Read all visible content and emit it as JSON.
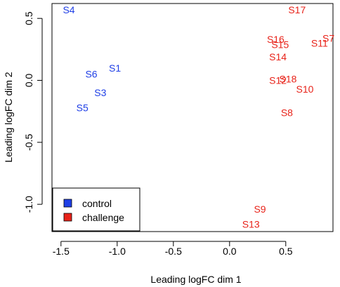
{
  "chart_data": {
    "type": "scatter",
    "title": "",
    "xlabel": "Leading logFC dim 1",
    "ylabel": "Leading logFC dim 2",
    "xlim": [
      -1.58,
      0.92
    ],
    "ylim": [
      -1.22,
      0.62
    ],
    "x_ticks": [
      -1.5,
      -1.0,
      -0.5,
      0.0,
      0.5
    ],
    "x_tick_labels": [
      "-1.5",
      "-1.0",
      "-0.5",
      "0.0",
      "0.5"
    ],
    "y_ticks": [
      -1.0,
      -0.5,
      0.0,
      0.5
    ],
    "y_tick_labels": [
      "-1.0",
      "-0.5",
      "0.0",
      "0.5"
    ],
    "grid": false,
    "legend_position": "bottom-left",
    "series": [
      {
        "name": "control",
        "color": "#1f3fe6",
        "points": [
          {
            "label": "S4",
            "x": -1.43,
            "y": 0.57
          },
          {
            "label": "S1",
            "x": -1.02,
            "y": 0.1
          },
          {
            "label": "S6",
            "x": -1.23,
            "y": 0.05
          },
          {
            "label": "S3",
            "x": -1.15,
            "y": -0.1
          },
          {
            "label": "S5",
            "x": -1.31,
            "y": -0.22
          }
        ]
      },
      {
        "name": "challenge",
        "color": "#e8231a",
        "points": [
          {
            "label": "S17",
            "x": 0.6,
            "y": 0.57
          },
          {
            "label": "S7",
            "x": 0.88,
            "y": 0.34
          },
          {
            "label": "S16",
            "x": 0.41,
            "y": 0.33
          },
          {
            "label": "S11",
            "x": 0.8,
            "y": 0.3
          },
          {
            "label": "S15",
            "x": 0.45,
            "y": 0.29
          },
          {
            "label": "S14",
            "x": 0.43,
            "y": 0.19
          },
          {
            "label": "S18",
            "x": 0.52,
            "y": 0.01
          },
          {
            "label": "S12",
            "x": 0.43,
            "y": 0.0
          },
          {
            "label": "S10",
            "x": 0.67,
            "y": -0.07
          },
          {
            "label": "S8",
            "x": 0.51,
            "y": -0.26
          },
          {
            "label": "S9",
            "x": 0.27,
            "y": -1.04
          },
          {
            "label": "S13",
            "x": 0.19,
            "y": -1.16
          }
        ]
      }
    ]
  }
}
